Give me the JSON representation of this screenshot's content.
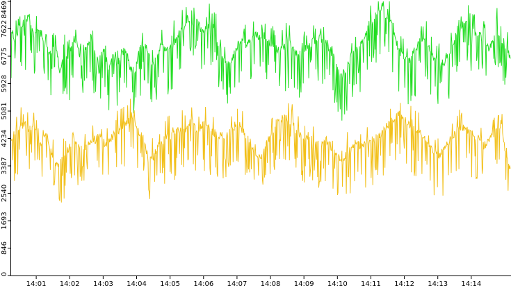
{
  "chart_data": {
    "type": "line",
    "title": "",
    "xlabel": "",
    "ylabel": "",
    "x_ticks": [
      "14:01",
      "14:02",
      "14:03",
      "14:04",
      "14:05",
      "14:06",
      "14:07",
      "14:08",
      "14:09",
      "14:10",
      "14:11",
      "14:12",
      "14:13",
      "14:14"
    ],
    "x_range": [
      "14:00:15",
      "14:15:10"
    ],
    "y_ticks": [
      "0",
      "846",
      "1693",
      "2540",
      "3387",
      "4234",
      "5081",
      "5928",
      "6775",
      "7622",
      "8469"
    ],
    "ylim": [
      0,
      8469
    ],
    "grid": false,
    "legend": "none",
    "series": [
      {
        "color": "#22dd22",
        "values": [
          7600,
          7200,
          7900,
          7500,
          8100,
          7400,
          7700,
          7300,
          7100,
          6900,
          7300,
          6300,
          7000,
          6700,
          7300,
          7200,
          6500,
          7100,
          7400,
          6800,
          6200,
          7000,
          6400,
          6900,
          6500,
          6900,
          7000,
          6400,
          6300,
          6900,
          7200,
          6900,
          6500,
          6800,
          7100,
          6900,
          7000,
          7200,
          7500,
          7600,
          8000,
          7800,
          7900,
          7600,
          7600,
          7800,
          7700,
          7000,
          6800,
          6500,
          6700,
          7000,
          7300,
          7100,
          7200,
          7400,
          7400,
          7300,
          7200,
          7200,
          7000,
          7000,
          7100,
          7200,
          6900,
          6800,
          6900,
          7100,
          7200,
          7300,
          7300,
          7200,
          7000,
          6800,
          6300,
          6200,
          6400,
          6800,
          7000,
          7100,
          7400,
          7800,
          7900,
          8100,
          8300,
          8000,
          7800,
          7300,
          6900,
          6800,
          6600,
          6900,
          7100,
          7300,
          7200,
          6900,
          6700,
          6500,
          6600,
          6800,
          7200,
          7500,
          7700,
          7900,
          7600,
          7500,
          7400,
          7300,
          7000,
          7200,
          7600,
          7300,
          7100,
          6700
        ]
      },
      {
        "color": "#f2c01a",
        "values": [
          4200,
          4400,
          4600,
          4700,
          4500,
          4700,
          4300,
          4100,
          4500,
          3800,
          3500,
          3400,
          3700,
          3900,
          4300,
          4000,
          3900,
          4000,
          4200,
          4200,
          4300,
          4100,
          4100,
          4300,
          4400,
          4600,
          4700,
          4900,
          4800,
          4400,
          4200,
          3600,
          3600,
          3900,
          4100,
          4300,
          4300,
          4400,
          4500,
          4500,
          4600,
          4800,
          4500,
          4600,
          4700,
          4500,
          4400,
          4300,
          4300,
          4400,
          4500,
          4700,
          4600,
          4300,
          4200,
          3700,
          3600,
          3800,
          4100,
          4400,
          4700,
          4800,
          4900,
          4800,
          4600,
          4400,
          4200,
          4300,
          4400,
          4100,
          4000,
          4200,
          4100,
          3800,
          3700,
          3500,
          3800,
          3900,
          4100,
          4000,
          4000,
          4200,
          4200,
          4300,
          4400,
          4600,
          4800,
          4900,
          5000,
          4800,
          4700,
          4500,
          4500,
          4400,
          4200,
          4000,
          3800,
          3700,
          3900,
          4100,
          4300,
          4500,
          4600,
          4500,
          4400,
          4300,
          4200,
          4000,
          4100,
          4300,
          4500,
          4700,
          3600,
          3300
        ]
      }
    ]
  }
}
